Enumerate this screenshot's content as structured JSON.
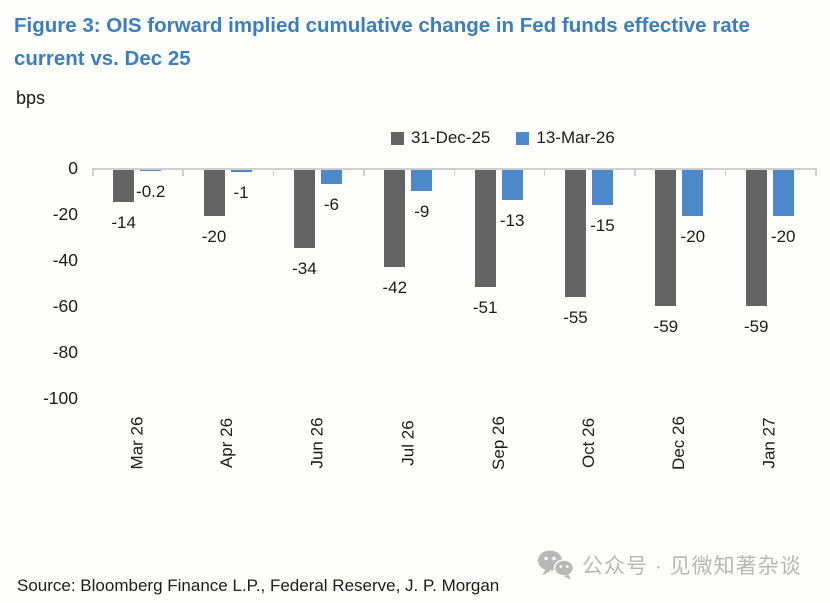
{
  "figure": {
    "title": "Figure 3: OIS forward implied cumulative change in Fed funds effective rate current vs. Dec 25",
    "unit_label": "bps",
    "source": "Source: Bloomberg Finance L.P., Federal Reserve, J. P. Morgan"
  },
  "watermark": {
    "icon": "wechat-icon",
    "text": "公众号 · 见微知著杂谈"
  },
  "colors": {
    "title_blue": "#3b7ec0",
    "series_gray": "#646464",
    "series_blue": "#4d89c8",
    "axis_line": "#cfcfcf",
    "text": "#1c1c1c",
    "watermark_gray": "#b8b8b8"
  },
  "chart_data": {
    "type": "bar",
    "title": "Figure 3: OIS forward implied cumulative change in Fed funds effective rate current vs. Dec 25",
    "xlabel": "",
    "ylabel": "bps",
    "ylim": [
      -100,
      0
    ],
    "yticks": [
      0,
      -20,
      -40,
      -60,
      -80,
      -100
    ],
    "grid": false,
    "legend_position": "top-center",
    "categories": [
      "Mar 26",
      "Apr 26",
      "Jun 26",
      "Jul 26",
      "Sep 26",
      "Oct 26",
      "Dec 26",
      "Jan 27"
    ],
    "series": [
      {
        "name": "31-Dec-25",
        "color": "#646464",
        "values": [
          -14,
          -20,
          -34,
          -42,
          -51,
          -55,
          -59,
          -59
        ],
        "labels": [
          "-14",
          "-20",
          "-34",
          "-42",
          "-51",
          "-55",
          "-59",
          "-59"
        ]
      },
      {
        "name": "13-Mar-26",
        "color": "#4d89c8",
        "values": [
          -0.2,
          -1,
          -6,
          -9,
          -13,
          -15,
          -20,
          -20
        ],
        "labels": [
          "-0.2",
          "-1",
          "-6",
          "-9",
          "-13",
          "-15",
          "-20",
          "-20"
        ]
      }
    ]
  }
}
